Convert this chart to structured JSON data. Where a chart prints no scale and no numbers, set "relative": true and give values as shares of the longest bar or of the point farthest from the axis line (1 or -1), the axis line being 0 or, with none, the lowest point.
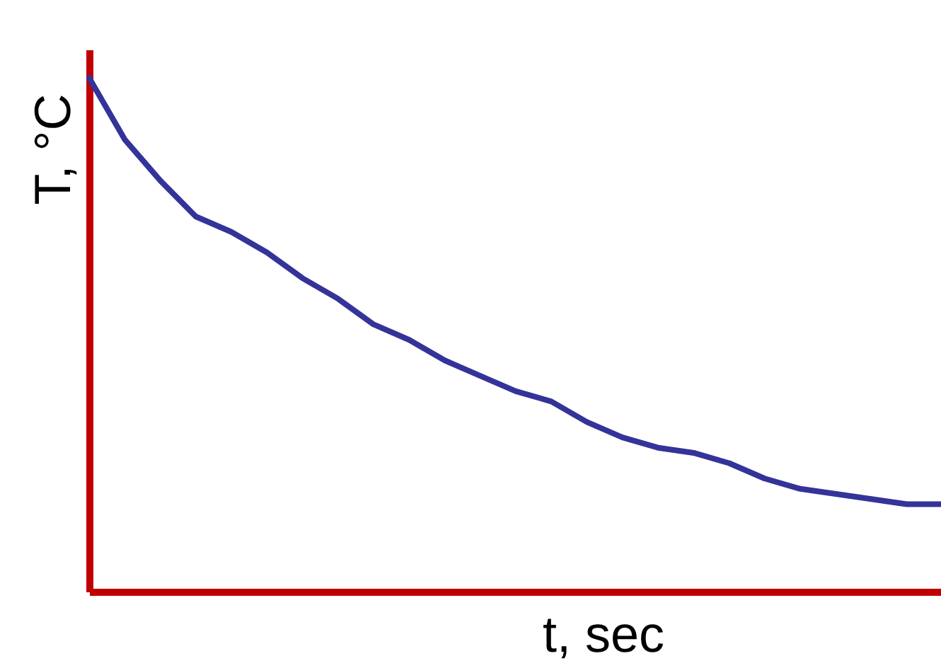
{
  "chart_data": {
    "type": "line",
    "relative": true,
    "xlabel": "t, sec",
    "ylabel": "T, °C",
    "grid": false,
    "marker": "none",
    "line_style": "solid",
    "categories": [
      null,
      null,
      null,
      null,
      null,
      null,
      null,
      null,
      null,
      null,
      null,
      null,
      null,
      null,
      null,
      null,
      null,
      null,
      null,
      null,
      null,
      null,
      null,
      null,
      null
    ],
    "series": [
      {
        "color": "#333399",
        "values": [
          1,
          0.88,
          0.8,
          0.73,
          0.7,
          0.66,
          0.61,
          0.57,
          0.52,
          0.49,
          0.45,
          0.42,
          0.39,
          0.37,
          0.33,
          0.3,
          0.28,
          0.27,
          0.25,
          0.22,
          0.2,
          0.19,
          0.18,
          0.17,
          0.17
        ]
      }
    ]
  }
}
